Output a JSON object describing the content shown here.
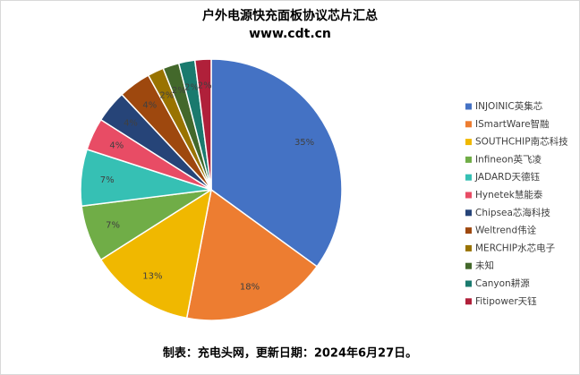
{
  "chart_data": {
    "type": "pie",
    "title": "户外电源快充面板协议芯片汇总",
    "subtitle": "www.cdt.cn",
    "note": "制表：充电头网，更新日期：2024年6月27日。",
    "categories": [
      "INJOINIC英集芯",
      "ISmartWare智融",
      "SOUTHCHIP南芯科技",
      "Infineon英飞凌",
      "JADARD天德钰",
      "Hynetek慧能泰",
      "Chipsea芯海科技",
      "Weltrend伟诠",
      "MERCHIP水芯电子",
      "未知",
      "Canyon耕源",
      "Fitipower天钰"
    ],
    "values": [
      35,
      18,
      13,
      7,
      7,
      4,
      4,
      4,
      2,
      2,
      2,
      2
    ],
    "value_labels": [
      "35%",
      "18%",
      "13%",
      "7%",
      "7%",
      "4%",
      "4%",
      "4%",
      "2%",
      "2%",
      "2%",
      "2%"
    ],
    "colors": [
      "#4472c4",
      "#ed7d31",
      "#f0b800",
      "#70ad47",
      "#36c0b4",
      "#e84c65",
      "#264478",
      "#9e480e",
      "#997300",
      "#43682b",
      "#1a7a6e",
      "#b0203a"
    ],
    "legend": "right"
  }
}
